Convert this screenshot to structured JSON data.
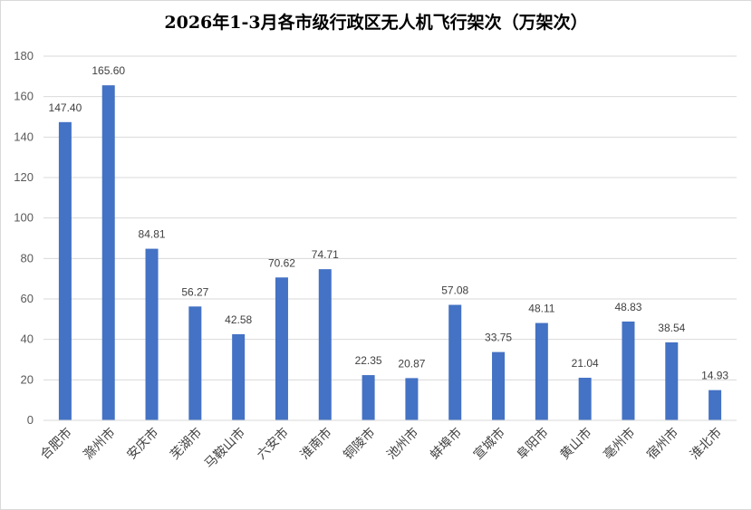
{
  "chart_data": {
    "type": "bar",
    "title": "2026年1-3月各市级行政区无人机飞行架次（万架次）",
    "xlabel": "",
    "ylabel": "",
    "categories": [
      "合肥市",
      "滁州市",
      "安庆市",
      "芜湖市",
      "马鞍山市",
      "六安市",
      "淮南市",
      "铜陵市",
      "池州市",
      "蚌埠市",
      "宣城市",
      "阜阳市",
      "黄山市",
      "亳州市",
      "宿州市",
      "淮北市"
    ],
    "values": [
      147.4,
      165.6,
      84.81,
      56.27,
      42.58,
      70.62,
      74.71,
      22.35,
      20.87,
      57.08,
      33.75,
      48.11,
      21.04,
      48.83,
      38.54,
      14.93
    ],
    "data_labels": [
      "147.40",
      "165.60",
      "84.81",
      "56.27",
      "42.58",
      "70.62",
      "74.71",
      "22.35",
      "20.87",
      "57.08",
      "33.75",
      "48.11",
      "21.04",
      "48.83",
      "38.54",
      "14.93"
    ],
    "ylim": [
      0,
      180
    ],
    "yticks": [
      0,
      20,
      40,
      60,
      80,
      100,
      120,
      140,
      160,
      180
    ],
    "grid": true,
    "legend": "none",
    "bar_color": "#4472c4",
    "grid_color": "#d9d9d9"
  }
}
